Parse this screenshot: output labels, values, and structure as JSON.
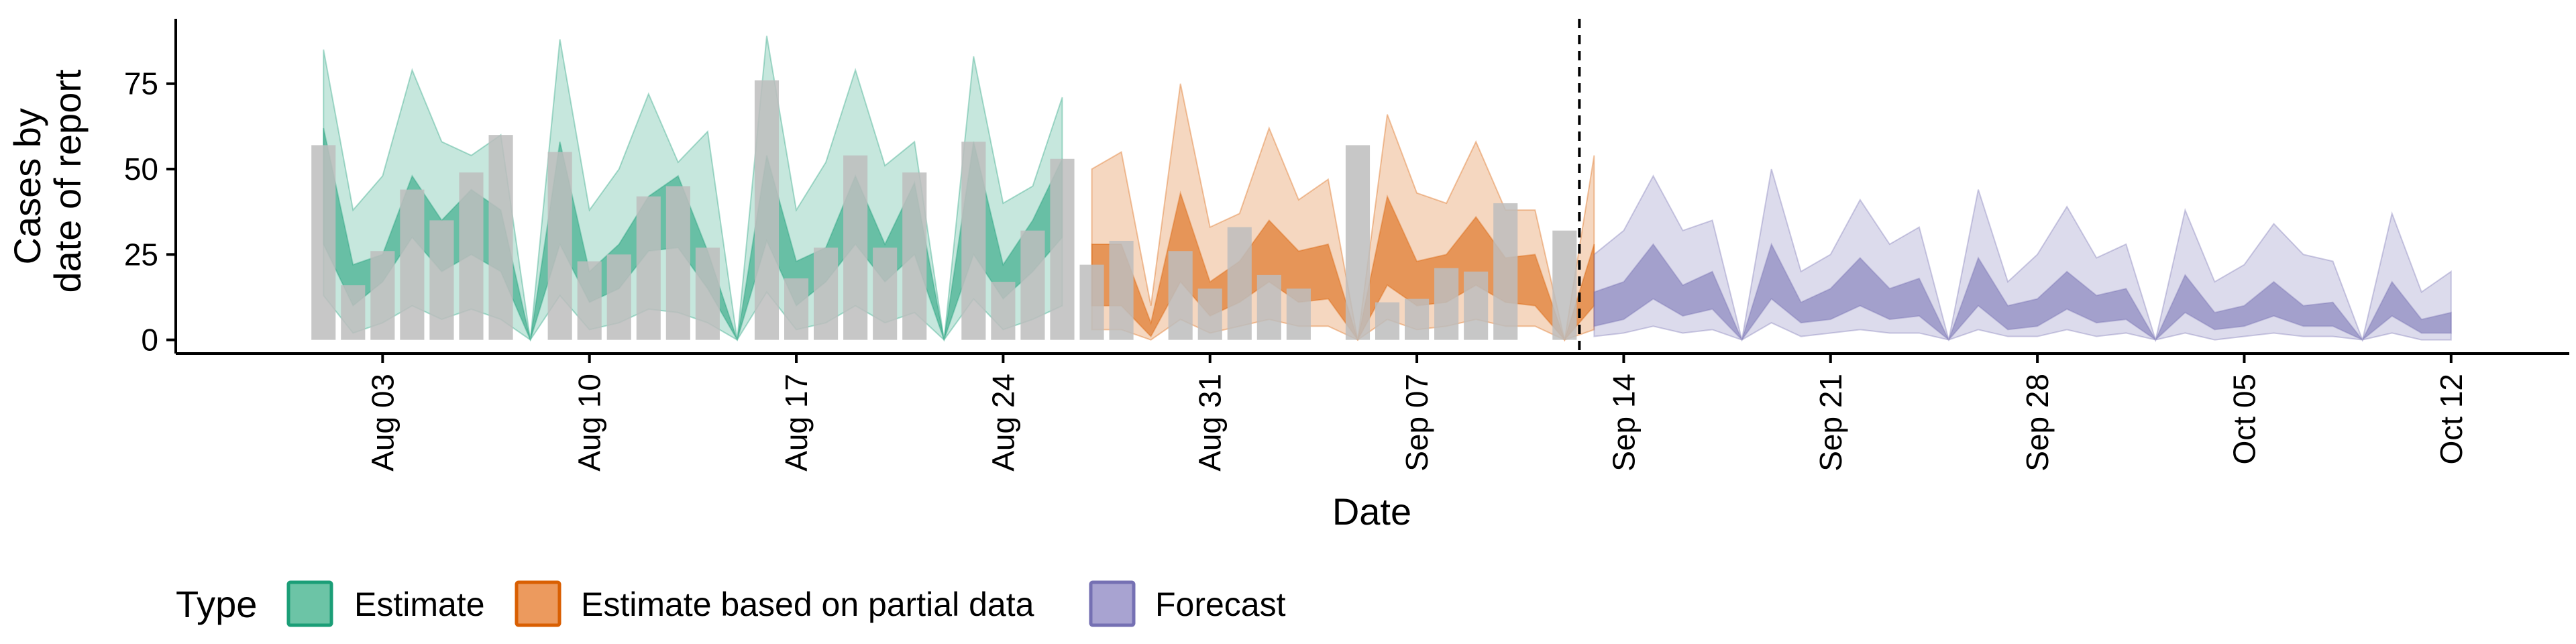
{
  "chart_data": {
    "type": "area",
    "xlabel": "Date",
    "ylabel_lines": [
      "Cases by",
      "date of report"
    ],
    "yticks": [
      0,
      25,
      50,
      75
    ],
    "ylim": [
      -4,
      94
    ],
    "x_ticks": [
      {
        "date": "2020-08-03",
        "label": "Aug 03"
      },
      {
        "date": "2020-08-10",
        "label": "Aug 10"
      },
      {
        "date": "2020-08-17",
        "label": "Aug 17"
      },
      {
        "date": "2020-08-24",
        "label": "Aug 24"
      },
      {
        "date": "2020-08-31",
        "label": "Aug 31"
      },
      {
        "date": "2020-09-07",
        "label": "Sep 07"
      },
      {
        "date": "2020-09-14",
        "label": "Sep 14"
      },
      {
        "date": "2020-09-21",
        "label": "Sep 21"
      },
      {
        "date": "2020-09-28",
        "label": "Sep 28"
      },
      {
        "date": "2020-10-05",
        "label": "Oct 05"
      },
      {
        "date": "2020-10-12",
        "label": "Oct 12"
      }
    ],
    "xlim": [
      "2020-07-27",
      "2020-10-16"
    ],
    "forecast_line_date": "2020-09-12",
    "grid": false,
    "legend": {
      "title": "Type",
      "position": "bottom",
      "entries": [
        {
          "label": "Estimate",
          "fill": "#6cc4a6",
          "stroke": "#1b9e77"
        },
        {
          "label": "Estimate based on partial data",
          "fill": "#ec9a5e",
          "stroke": "#d95f02"
        },
        {
          "label": "Forecast",
          "fill": "#a8a3d1",
          "stroke": "#7570b3"
        }
      ]
    },
    "colors": {
      "Estimate": "#1b9e77",
      "Estimate based on partial data": "#d95f02",
      "Forecast": "#7570b3",
      "bars": "#bdbdbd"
    },
    "reported_cases": {
      "start_date": "2020-08-01",
      "values": [
        57,
        16,
        26,
        44,
        35,
        49,
        60,
        0,
        55,
        23,
        25,
        42,
        45,
        27,
        0,
        76,
        18,
        27,
        54,
        27,
        49,
        0,
        58,
        17,
        32,
        53,
        22,
        29,
        0,
        26,
        15,
        33,
        19,
        15,
        0,
        57,
        11,
        12,
        21,
        20,
        40,
        0,
        32
      ]
    },
    "series": [
      {
        "name": "Estimate",
        "start_date": "2020-08-01",
        "outer_upper": [
          85,
          38,
          48,
          79,
          58,
          54,
          60,
          0,
          88,
          38,
          50,
          72,
          52,
          61,
          0,
          89,
          38,
          52,
          79,
          51,
          58,
          0,
          83,
          40,
          45,
          71
        ],
        "inner_upper": [
          62,
          22,
          25,
          48,
          35,
          44,
          38,
          0,
          58,
          20,
          28,
          42,
          48,
          26,
          0,
          54,
          23,
          27,
          48,
          28,
          46,
          0,
          58,
          22,
          35,
          53
        ],
        "inner_lower": [
          28,
          10,
          17,
          30,
          20,
          25,
          20,
          0,
          28,
          11,
          15,
          26,
          27,
          15,
          0,
          29,
          10,
          17,
          28,
          17,
          25,
          0,
          25,
          12,
          20,
          30
        ],
        "outer_lower": [
          13,
          2,
          5,
          10,
          6,
          9,
          6,
          0,
          13,
          3,
          5,
          9,
          8,
          5,
          0,
          14,
          3,
          5,
          10,
          5,
          8,
          0,
          12,
          3,
          6,
          10
        ]
      },
      {
        "name": "Estimate based on partial data",
        "start_date": "2020-08-27",
        "outer_upper": [
          50,
          55,
          10,
          75,
          33,
          37,
          62,
          41,
          47,
          0,
          66,
          43,
          40,
          58,
          38,
          38,
          0,
          54
        ],
        "inner_upper": [
          28,
          28,
          5,
          43,
          17,
          23,
          35,
          26,
          28,
          0,
          42,
          23,
          25,
          36,
          24,
          25,
          0,
          28
        ],
        "inner_lower": [
          10,
          10,
          1,
          17,
          7,
          11,
          17,
          11,
          12,
          0,
          16,
          10,
          11,
          16,
          11,
          10,
          0,
          10
        ],
        "outer_lower": [
          3,
          3,
          0,
          6,
          2,
          4,
          6,
          4,
          4,
          0,
          6,
          3,
          4,
          6,
          4,
          4,
          0,
          3
        ]
      },
      {
        "name": "Forecast",
        "start_date": "2020-09-13",
        "outer_upper": [
          25,
          32,
          48,
          32,
          35,
          0,
          50,
          20,
          25,
          41,
          28,
          33,
          0,
          44,
          17,
          25,
          39,
          24,
          28,
          0,
          38,
          17,
          22,
          34,
          25,
          23,
          0,
          37,
          14,
          20
        ],
        "inner_upper": [
          14,
          17,
          28,
          16,
          20,
          0,
          28,
          11,
          15,
          24,
          15,
          18,
          0,
          24,
          10,
          12,
          20,
          13,
          15,
          0,
          19,
          8,
          10,
          17,
          10,
          11,
          0,
          17,
          6,
          8
        ],
        "inner_lower": [
          4,
          6,
          12,
          7,
          9,
          0,
          12,
          5,
          6,
          10,
          6,
          7,
          0,
          10,
          3,
          4,
          9,
          5,
          6,
          0,
          8,
          3,
          4,
          7,
          4,
          4,
          0,
          7,
          2,
          2
        ],
        "outer_lower": [
          1,
          2,
          4,
          2,
          3,
          0,
          5,
          1,
          2,
          3,
          2,
          2,
          0,
          3,
          1,
          1,
          3,
          1,
          2,
          0,
          2,
          0,
          1,
          2,
          1,
          1,
          0,
          2,
          0,
          0
        ]
      }
    ]
  }
}
